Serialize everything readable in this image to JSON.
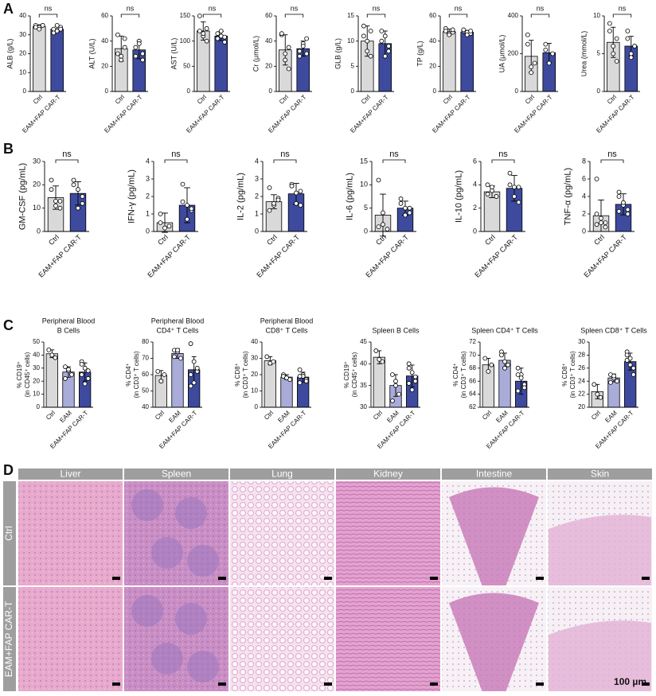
{
  "panel_labels": [
    "A",
    "B",
    "C",
    "D"
  ],
  "chart_data": [
    {
      "type": "bar",
      "ylabel": "ALB (g/L)",
      "categories": [
        "Ctrl",
        "EAM+FAP CAR-T"
      ],
      "colors": [
        "#d9d9d9",
        "#3d4a9e"
      ],
      "values": [
        34.3,
        33
      ],
      "errors": [
        1,
        1.5
      ],
      "points": [
        [
          35,
          34,
          35,
          34,
          33,
          35
        ],
        [
          33,
          32,
          34,
          31,
          35,
          33
        ]
      ],
      "ylim": [
        0,
        40
      ],
      "yticks": [
        0,
        10,
        20,
        30,
        40
      ],
      "annotation": "ns"
    },
    {
      "type": "bar",
      "ylabel": "ALT (U/L)",
      "categories": [
        "Ctrl",
        "EAM+FAP CAR-T"
      ],
      "colors": [
        "#d9d9d9",
        "#3d4a9e"
      ],
      "values": [
        34,
        33
      ],
      "errors": [
        10,
        7
      ],
      "points": [
        [
          45,
          25,
          42,
          30,
          28,
          35
        ],
        [
          28,
          40,
          25,
          35,
          38,
          30
        ]
      ],
      "ylim": [
        0,
        60
      ],
      "yticks": [
        0,
        20,
        40,
        60
      ],
      "annotation": "ns"
    },
    {
      "type": "bar",
      "ylabel": "AST (U/L)",
      "categories": [
        "Ctrl",
        "EAM+FAP CAR-T"
      ],
      "colors": [
        "#d9d9d9",
        "#3d4a9e"
      ],
      "values": [
        120,
        110
      ],
      "errors": [
        18,
        9
      ],
      "points": [
        [
          150,
          110,
          100,
          120,
          115,
          125
        ],
        [
          105,
          110,
          98,
          115,
          120,
          108
        ]
      ],
      "ylim": [
        0,
        150
      ],
      "yticks": [
        0,
        50,
        100,
        150
      ],
      "annotation": "ns"
    },
    {
      "type": "bar",
      "ylabel": "Cr (μmol/L)",
      "categories": [
        "Ctrl",
        "EAM+FAP CAR-T"
      ],
      "colors": [
        "#d9d9d9",
        "#3d4a9e"
      ],
      "values": [
        33,
        34
      ],
      "errors": [
        12,
        6
      ],
      "points": [
        [
          45,
          30,
          18,
          46,
          25,
          35
        ],
        [
          28,
          38,
          42,
          32,
          36,
          30
        ]
      ],
      "ylim": [
        0,
        60
      ],
      "yticks": [
        0,
        20,
        40,
        60
      ],
      "annotation": "ns"
    },
    {
      "type": "bar",
      "ylabel": "GLB (g/L)",
      "categories": [
        "Ctrl",
        "EAM+FAP CAR-T"
      ],
      "colors": [
        "#d9d9d9",
        "#3d4a9e"
      ],
      "values": [
        10,
        9.5
      ],
      "errors": [
        3,
        2.5
      ],
      "points": [
        [
          13,
          8,
          7,
          11,
          10,
          12
        ],
        [
          12,
          7,
          9,
          10,
          11,
          8
        ]
      ],
      "ylim": [
        0,
        15
      ],
      "yticks": [
        0,
        5,
        10,
        15
      ],
      "annotation": "ns"
    },
    {
      "type": "bar",
      "ylabel": "TP (g/L)",
      "categories": [
        "Ctrl",
        "EAM+FAP CAR-T"
      ],
      "colors": [
        "#d9d9d9",
        "#3d4a9e"
      ],
      "values": [
        47.5,
        47
      ],
      "errors": [
        2,
        1.5
      ],
      "points": [
        [
          50,
          46,
          47,
          48,
          45,
          49
        ],
        [
          48,
          47,
          46,
          49,
          45,
          48
        ]
      ],
      "ylim": [
        0,
        60
      ],
      "yticks": [
        0,
        20,
        40,
        60
      ],
      "annotation": "ns"
    },
    {
      "type": "bar",
      "ylabel": "UA (μmol/L)",
      "categories": [
        "Ctrl",
        "EAM+FAP CAR-T"
      ],
      "colors": [
        "#d9d9d9",
        "#3d4a9e"
      ],
      "values": [
        186,
        205
      ],
      "errors": [
        85,
        50
      ],
      "points": [
        [
          300,
          100,
          150,
          250,
          130
        ],
        [
          250,
          150,
          200,
          220
        ]
      ],
      "ylim": [
        0,
        400
      ],
      "yticks": [
        0,
        200,
        400
      ],
      "annotation": "ns"
    },
    {
      "type": "bar",
      "ylabel": "Urea (mmol/L)",
      "categories": [
        "Ctrl",
        "EAM+FAP CAR-T"
      ],
      "colors": [
        "#d9d9d9",
        "#3d4a9e"
      ],
      "values": [
        6.5,
        6
      ],
      "errors": [
        2,
        1.3
      ],
      "points": [
        [
          9,
          6,
          4,
          8,
          5,
          7
        ],
        [
          8,
          5,
          6,
          7,
          4.5,
          6
        ]
      ],
      "ylim": [
        0,
        10
      ],
      "yticks": [
        0,
        5,
        10
      ],
      "annotation": "ns"
    },
    {
      "type": "bar",
      "ylabel": "GM-CSF (pg/mL)",
      "categories": [
        "Ctrl",
        "EAM+FAP CAR-T"
      ],
      "colors": [
        "#d9d9d9",
        "#3d4a9e"
      ],
      "values": [
        14.5,
        16.3
      ],
      "errors": [
        5,
        5
      ],
      "points": [
        [
          22,
          13,
          10,
          18,
          11,
          13
        ],
        [
          22,
          18,
          12,
          20,
          10,
          15
        ]
      ],
      "ylim": [
        0,
        30
      ],
      "yticks": [
        0,
        10,
        20,
        30
      ],
      "annotation": "ns"
    },
    {
      "type": "bar",
      "ylabel": "IFN-γ (pg/mL)",
      "categories": [
        "Ctrl",
        "EAM+FAP CAR-T"
      ],
      "colors": [
        "#d9d9d9",
        "#3d4a9e"
      ],
      "values": [
        0.5,
        1.5
      ],
      "errors": [
        0.55,
        1
      ],
      "points": [
        [
          1,
          0.2,
          0.3,
          0.5
        ],
        [
          2.7,
          1.5,
          1.2,
          1.7,
          0.7,
          1.3
        ]
      ],
      "ylim": [
        0,
        4
      ],
      "yticks": [
        0,
        1,
        2,
        3,
        4
      ],
      "annotation": "ns"
    },
    {
      "type": "bar",
      "ylabel": "IL-2 (pg/mL)",
      "categories": [
        "Ctrl",
        "EAM+FAP CAR-T"
      ],
      "colors": [
        "#d9d9d9",
        "#3d4a9e"
      ],
      "values": [
        1.7,
        2.15
      ],
      "errors": [
        0.4,
        0.6
      ],
      "points": [
        [
          2.5,
          1.5,
          1.9,
          1.2,
          1.6,
          1.8
        ],
        [
          2.7,
          2.2,
          1.5,
          2.6,
          1.6,
          2.3
        ]
      ],
      "ylim": [
        0,
        4
      ],
      "yticks": [
        0,
        1,
        2,
        3,
        4
      ],
      "annotation": "ns"
    },
    {
      "type": "bar",
      "ylabel": "IL-6 (pg/mL)",
      "categories": [
        "Ctrl",
        "EAM+FAP CAR-T"
      ],
      "colors": [
        "#d9d9d9",
        "#3d4a9e"
      ],
      "values": [
        3.5,
        5
      ],
      "errors": [
        4.5,
        1.5
      ],
      "points": [
        [
          11,
          4,
          0.5,
          1,
          1.5
        ],
        [
          7,
          5,
          4,
          6,
          3.5,
          5
        ]
      ],
      "ylim": [
        0,
        15
      ],
      "yticks": [
        0,
        5,
        10,
        15
      ],
      "annotation": "ns"
    },
    {
      "type": "bar",
      "ylabel": "IL-10 (pg/mL)",
      "categories": [
        "Ctrl",
        "EAM+FAP CAR-T"
      ],
      "colors": [
        "#d9d9d9",
        "#3d4a9e"
      ],
      "values": [
        3.4,
        3.7
      ],
      "errors": [
        0.5,
        1.1
      ],
      "points": [
        [
          4,
          3.5,
          3,
          3.2,
          3.8,
          3
        ],
        [
          5,
          3.8,
          2.5,
          4,
          3,
          3.8
        ]
      ],
      "ylim": [
        0,
        6
      ],
      "yticks": [
        0,
        2,
        4,
        6
      ],
      "annotation": "ns"
    },
    {
      "type": "bar",
      "ylabel": "TNF-α (pg/mL)",
      "categories": [
        "Ctrl",
        "EAM+FAP CAR-T"
      ],
      "colors": [
        "#d9d9d9",
        "#3d4a9e"
      ],
      "values": [
        1.8,
        3.1
      ],
      "errors": [
        1.8,
        1.2
      ],
      "points": [
        [
          6,
          1,
          0.5,
          2,
          1.5,
          1,
          0.8
        ],
        [
          4.5,
          3,
          2,
          4,
          3.3,
          2.5,
          2.3
        ]
      ],
      "ylim": [
        0,
        8
      ],
      "yticks": [
        0,
        2,
        4,
        6,
        8
      ],
      "annotation": "ns"
    },
    {
      "type": "bar",
      "title": [
        "Peripheral Blood",
        "B Cells"
      ],
      "ylabel": [
        "% CD19⁺",
        "(in CD45⁺ cells)"
      ],
      "categories": [
        "Ctrl",
        "EAM",
        "EAM+FAP CAR-T"
      ],
      "colors": [
        "#d9d9d9",
        "#a9abd8",
        "#3d4a9e"
      ],
      "values": [
        41,
        27,
        27
      ],
      "errors": [
        3,
        4,
        7
      ],
      "points": [
        [
          44,
          40,
          38
        ],
        [
          31,
          28,
          25,
          22,
          29
        ],
        [
          35,
          30,
          28,
          25,
          18,
          22,
          33
        ]
      ],
      "ylim": [
        0,
        50
      ],
      "yticks": [
        0,
        10,
        20,
        30,
        40,
        50
      ]
    },
    {
      "type": "bar",
      "title": [
        "Peripheral Blood",
        "CD4⁺ T Cells"
      ],
      "ylabel": [
        "% CD4⁺",
        "(in CD3⁺ T cells)"
      ],
      "categories": [
        "Ctrl",
        "EAM",
        "EAM+FAP CAR-T"
      ],
      "colors": [
        "#d9d9d9",
        "#a9abd8",
        "#3d4a9e"
      ],
      "values": [
        59.5,
        73,
        63
      ],
      "errors": [
        3,
        3,
        8
      ],
      "points": [
        [
          62,
          56,
          60
        ],
        [
          75,
          74,
          70,
          71,
          75
        ],
        [
          79,
          68,
          62,
          60,
          55,
          64,
          53
        ]
      ],
      "ylim": [
        40,
        80
      ],
      "yticks": [
        40,
        50,
        60,
        70,
        80
      ]
    },
    {
      "type": "bar",
      "title": [
        "Peripheral Blood",
        "CD8⁺ T Cells"
      ],
      "ylabel": [
        "% CD8⁺",
        "(in CD3⁺ T cells)"
      ],
      "categories": [
        "Ctrl",
        "EAM",
        "EAM+FAP CAR-T"
      ],
      "colors": [
        "#d9d9d9",
        "#a9abd8",
        "#3d4a9e"
      ],
      "values": [
        28.5,
        18.5,
        18.5
      ],
      "errors": [
        2.5,
        1.5,
        3
      ],
      "points": [
        [
          31,
          27,
          28
        ],
        [
          20,
          18,
          17,
          19,
          18
        ],
        [
          23,
          20,
          17,
          15,
          19,
          16,
          19
        ]
      ],
      "ylim": [
        0,
        40
      ],
      "yticks": [
        0,
        10,
        20,
        30,
        40
      ]
    },
    {
      "type": "bar",
      "title": [
        "Spleen B Cells"
      ],
      "ylabel": [
        "% CD19⁺",
        "(in CD45⁺ cells)"
      ],
      "categories": [
        "Ctrl",
        "EAM",
        "EAM+FAP CAR-T"
      ],
      "colors": [
        "#d9d9d9",
        "#a9abd8",
        "#3d4a9e"
      ],
      "values": [
        41.5,
        35,
        37.2
      ],
      "errors": [
        1.5,
        2.5,
        2.5
      ],
      "points": [
        [
          43,
          41,
          40.5
        ],
        [
          37.5,
          35,
          33,
          31.5,
          36
        ],
        [
          40,
          38,
          36,
          39,
          34,
          37,
          35.5
        ]
      ],
      "ylim": [
        30,
        45
      ],
      "yticks": [
        30,
        35,
        40,
        45
      ]
    },
    {
      "type": "bar",
      "title": [
        "Spleen CD4⁺ T Cells"
      ],
      "ylabel": [
        "% CD4⁺",
        "(in CD3⁺ T cells)"
      ],
      "categories": [
        "Ctrl",
        "EAM",
        "EAM+FAP CAR-T"
      ],
      "colors": [
        "#d9d9d9",
        "#a9abd8",
        "#3d4a9e"
      ],
      "values": [
        68.5,
        69.2,
        66
      ],
      "errors": [
        1,
        1.1,
        2
      ],
      "points": [
        [
          69.5,
          67.5,
          68.5
        ],
        [
          70.5,
          69,
          68.5,
          70,
          68
        ],
        [
          68,
          67,
          65.5,
          64.5,
          66.5,
          65,
          67
        ]
      ],
      "ylim": [
        62,
        72
      ],
      "yticks": [
        62,
        64,
        66,
        68,
        70,
        72
      ]
    },
    {
      "type": "bar",
      "title": [
        "Spleen CD8⁺ T Cells"
      ],
      "ylabel": [
        "% CD8⁺",
        "(in CD3⁺ T cells)"
      ],
      "categories": [
        "Ctrl",
        "EAM",
        "EAM+FAP CAR-T"
      ],
      "colors": [
        "#d9d9d9",
        "#a9abd8",
        "#3d4a9e"
      ],
      "values": [
        22.4,
        24.5,
        27
      ],
      "errors": [
        1.1,
        0.6,
        1.3
      ],
      "points": [
        [
          23.5,
          22,
          21.5
        ],
        [
          25,
          24.5,
          24,
          23.8,
          24.8
        ],
        [
          28.5,
          27.5,
          26,
          28,
          26.5,
          25,
          27.2
        ]
      ],
      "ylim": [
        20,
        30
      ],
      "yticks": [
        20,
        22,
        24,
        26,
        28,
        30
      ]
    }
  ],
  "histology": {
    "columns": [
      "Liver",
      "Spleen",
      "Lung",
      "Kidney",
      "Intestine",
      "Skin"
    ],
    "rows": [
      "Ctrl",
      "EAM+FAP CAR-T"
    ],
    "scale_bar": "100 µm"
  }
}
